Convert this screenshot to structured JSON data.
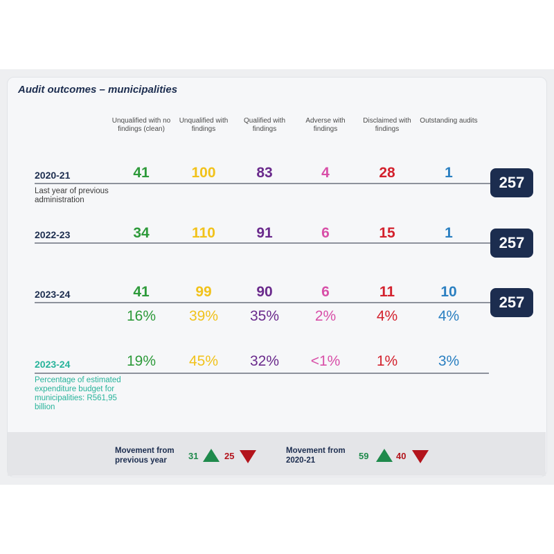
{
  "chart_data": {
    "type": "table",
    "title": "Audit outcomes – municipalities",
    "columns": [
      {
        "label": "Unqualified with no findings (clean)",
        "color": "#2d9a3a"
      },
      {
        "label": "Unqualified with findings",
        "color": "#f1c21b"
      },
      {
        "label": "Qualified with findings",
        "color": "#6a2a8c"
      },
      {
        "label": "Adverse with findings",
        "color": "#d84fa8"
      },
      {
        "label": "Disclaimed with findings",
        "color": "#d3212d"
      },
      {
        "label": "Outstanding audits",
        "color": "#2a7fc1"
      }
    ],
    "rows": [
      {
        "year": "2020-21",
        "note": "Last year of previous administration",
        "values": [
          "41",
          "100",
          "83",
          "4",
          "28",
          "1"
        ],
        "total": "257"
      },
      {
        "year": "2022-23",
        "note": "",
        "values": [
          "34",
          "110",
          "91",
          "6",
          "15",
          "1"
        ],
        "total": "257"
      },
      {
        "year": "2023-24",
        "note": "",
        "values": [
          "41",
          "99",
          "90",
          "6",
          "11",
          "10"
        ],
        "total": "257",
        "percentages": [
          "16%",
          "39%",
          "35%",
          "2%",
          "4%",
          "4%"
        ]
      }
    ],
    "budget_row": {
      "year": "2023-24",
      "note": "Percentage of estimated expenditure budget for municipalities: R561,95 billion",
      "percentages": [
        "19%",
        "45%",
        "32%",
        "<1%",
        "1%",
        "3%"
      ]
    }
  },
  "movement": [
    {
      "label_line1": "Movement from",
      "label_line2": "previous year",
      "up": "31",
      "down": "25"
    },
    {
      "label_line1": "Movement from",
      "label_line2": "2020-21",
      "up": "59",
      "down": "40"
    }
  ],
  "colors": {
    "navy": "#1c2d4f",
    "teal": "#27b39a",
    "up": "#1f8a4c",
    "down": "#b3141c"
  }
}
